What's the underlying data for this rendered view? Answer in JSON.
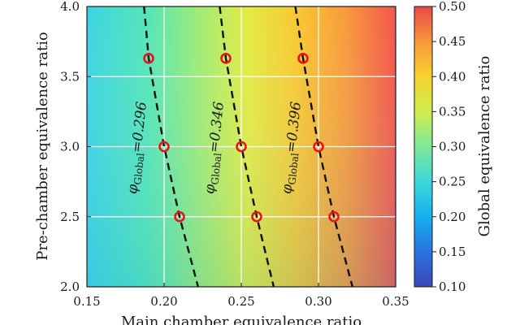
{
  "chart_data": {
    "type": "heatmap",
    "xlabel": "Main chamber equivalence ratio",
    "ylabel": "Pre-chamber equivalence ratio",
    "xlim": [
      0.15,
      0.35
    ],
    "ylim": [
      2.0,
      4.0
    ],
    "xticks": [
      "0.15",
      "0.20",
      "0.25",
      "0.30",
      "0.35"
    ],
    "yticks": [
      "2.0",
      "2.5",
      "3.0",
      "3.5",
      "4.0"
    ],
    "grid": true,
    "colorbar": {
      "label": "Global equivalence ratio",
      "range": [
        0.1,
        0.5
      ],
      "ticks": [
        "0.10",
        "0.15",
        "0.20",
        "0.25",
        "0.30",
        "0.35",
        "0.40",
        "0.45",
        "0.50"
      ],
      "colormap": "jet"
    },
    "color_field": {
      "description_units": "global equivalence ratio",
      "samples": [
        {
          "x": 0.15,
          "y": 2.0,
          "value": 0.22
        },
        {
          "x": 0.15,
          "y": 4.0,
          "value": 0.25
        },
        {
          "x": 0.35,
          "y": 2.0,
          "value": 0.44
        },
        {
          "x": 0.35,
          "y": 4.0,
          "value": 0.48
        }
      ]
    },
    "contours": [
      {
        "symbol": "φ",
        "subscript": "Global",
        "value": "0.296",
        "line": [
          [
            0.187,
            4.0
          ],
          [
            0.19,
            3.63
          ],
          [
            0.2,
            3.0
          ],
          [
            0.21,
            2.5
          ],
          [
            0.222,
            2.0
          ]
        ]
      },
      {
        "symbol": "φ",
        "subscript": "Global",
        "value": "0.346",
        "line": [
          [
            0.236,
            4.0
          ],
          [
            0.24,
            3.63
          ],
          [
            0.25,
            3.0
          ],
          [
            0.26,
            2.5
          ],
          [
            0.271,
            2.0
          ]
        ]
      },
      {
        "symbol": "φ",
        "subscript": "Global",
        "value": "0.396",
        "line": [
          [
            0.285,
            4.0
          ],
          [
            0.29,
            3.63
          ],
          [
            0.3,
            3.0
          ],
          [
            0.31,
            2.5
          ],
          [
            0.322,
            2.0
          ]
        ]
      }
    ],
    "series": [
      {
        "type": "scatter",
        "marker": "open-circle",
        "color": "#e8141c",
        "x": [
          0.19,
          0.2,
          0.21,
          0.24,
          0.25,
          0.26,
          0.29,
          0.3,
          0.31
        ],
        "y": [
          3.63,
          3.0,
          2.5,
          3.63,
          3.0,
          2.5,
          3.63,
          3.0,
          2.5
        ]
      }
    ]
  }
}
